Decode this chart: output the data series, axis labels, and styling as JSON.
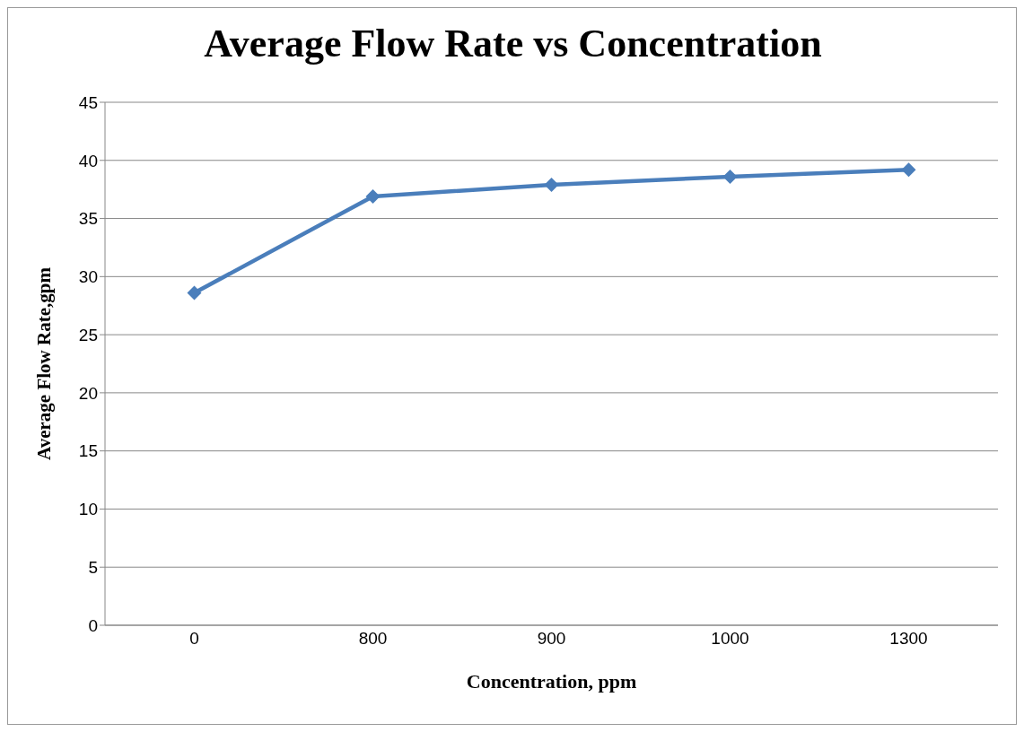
{
  "chart_data": {
    "type": "line",
    "title": "Average Flow Rate vs Concentration",
    "xlabel": "Concentration, ppm",
    "ylabel": "Average Flow Rate,gpm",
    "categories": [
      "0",
      "800",
      "900",
      "1000",
      "1300"
    ],
    "series": [
      {
        "color": "#4a7ebb",
        "values": [
          28.6,
          36.9,
          37.9,
          38.6,
          39.2
        ]
      }
    ],
    "ylim": [
      0,
      45
    ],
    "yticks": [
      0,
      5,
      10,
      15,
      20,
      25,
      30,
      35,
      40,
      45
    ],
    "grid": "y",
    "legend": false,
    "marker": "diamond",
    "line_style": "solid"
  }
}
